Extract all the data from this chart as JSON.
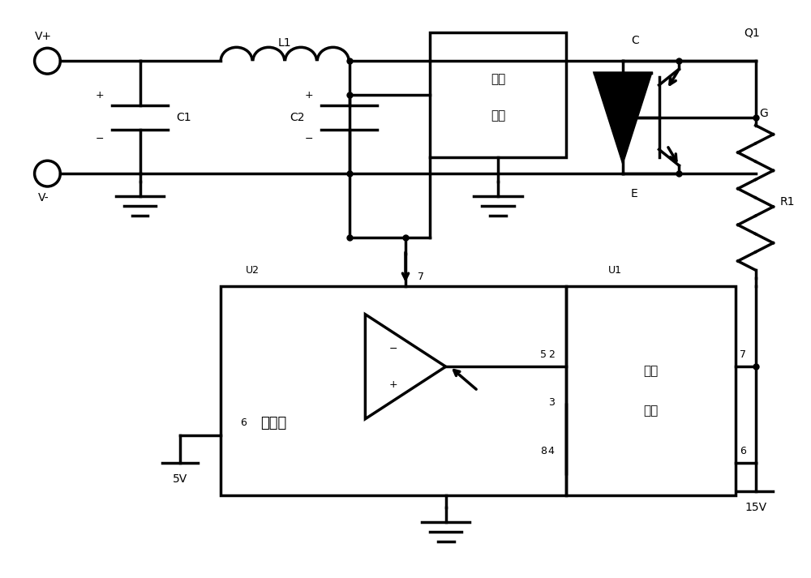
{
  "bg_color": "#ffffff",
  "line_color": "#000000",
  "lw": 2.5,
  "figsize": [
    10.0,
    7.13
  ],
  "labels": {
    "vp": "V+",
    "vm": "V-",
    "L1": "L1",
    "C1": "C1",
    "C2": "C2",
    "Q1": "Q1",
    "C_term": "C",
    "E_term": "E",
    "G_term": "G",
    "R1": "R1",
    "samp1": "取样",
    "samp2": "电路",
    "mcu": "单片机",
    "drv1": "推动",
    "drv2": "电路",
    "U1": "U1",
    "U2": "U2",
    "5V": "5V",
    "15V": "15V",
    "minus": "−",
    "plus": "+"
  }
}
